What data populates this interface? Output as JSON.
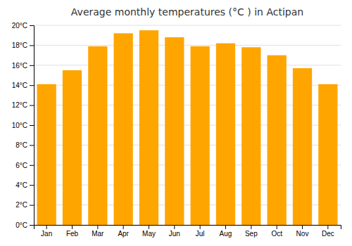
{
  "chart_data": {
    "type": "bar",
    "title": "Average monthly temperatures (°C ) in Actipan",
    "categories": [
      "Jan",
      "Feb",
      "Mar",
      "Apr",
      "May",
      "Jun",
      "Jul",
      "Aug",
      "Sep",
      "Oct",
      "Nov",
      "Dec"
    ],
    "values": [
      14.1,
      15.5,
      17.9,
      19.2,
      19.5,
      18.8,
      17.9,
      18.2,
      17.8,
      17.0,
      15.7,
      14.1
    ],
    "color": "#FFA500",
    "ylim": [
      0,
      20
    ],
    "yticks": [
      {
        "value": 0,
        "label": "0°C"
      },
      {
        "value": 2,
        "label": "2°C"
      },
      {
        "value": 4,
        "label": "4°C"
      },
      {
        "value": 6,
        "label": "6°C"
      },
      {
        "value": 8,
        "label": "8°C"
      },
      {
        "value": 10,
        "label": "10°C"
      },
      {
        "value": 12,
        "label": "12°C"
      },
      {
        "value": 14,
        "label": "14°C"
      },
      {
        "value": 16,
        "label": "16°C"
      },
      {
        "value": 18,
        "label": "18°C"
      },
      {
        "value": 20,
        "label": "20°C"
      }
    ],
    "grid": true
  }
}
